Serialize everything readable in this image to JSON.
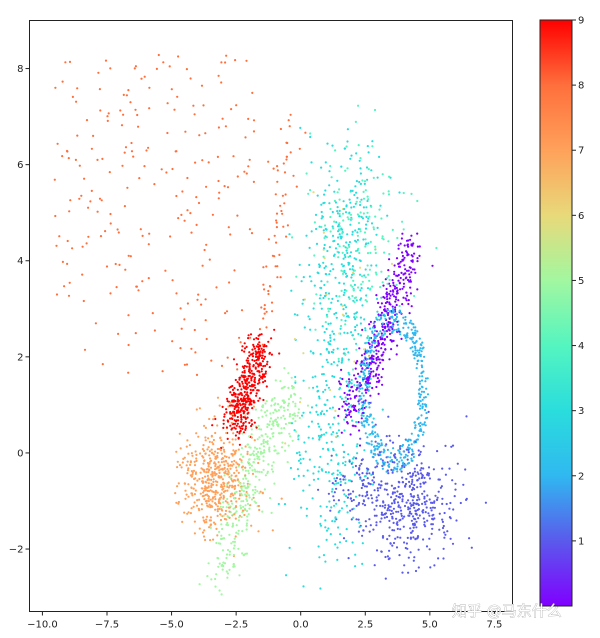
{
  "chart_data": {
    "type": "scatter",
    "title": "",
    "xlabel": "",
    "ylabel": "",
    "xlim": [
      -10.5,
      8.2
    ],
    "ylim": [
      -3.3,
      9.0
    ],
    "x_ticks": [
      -10.0,
      -7.5,
      -5.0,
      -2.5,
      0.0,
      2.5,
      5.0,
      7.5
    ],
    "x_tick_labels": [
      "−10.0",
      "−7.5",
      "−5.0",
      "−2.5",
      "0.0",
      "2.5",
      "5.0",
      "7.5"
    ],
    "y_ticks": [
      -2,
      0,
      2,
      4,
      6,
      8
    ],
    "y_tick_labels": [
      "−2",
      "0",
      "2",
      "4",
      "6",
      "8"
    ],
    "grid": false,
    "colorbar": {
      "colormap": "rainbow",
      "range": [
        0,
        9
      ],
      "ticks": [
        1,
        2,
        3,
        4,
        5,
        6,
        7,
        8,
        9
      ],
      "tick_labels": [
        "1",
        "2",
        "3",
        "4",
        "5",
        "6",
        "7",
        "8",
        "9"
      ]
    },
    "clusters": [
      {
        "label": 0,
        "color": "#8000ff",
        "count": 420,
        "spread": "curved band",
        "path": [
          [
            1.8,
            0.8
          ],
          [
            2.8,
            1.9
          ],
          [
            3.6,
            3.1
          ],
          [
            4.3,
            4.2
          ]
        ],
        "width": 0.28
      },
      {
        "label": 1,
        "color": "#5a5aec",
        "count": 520,
        "spread": "blob",
        "center": [
          4.2,
          -1.0
        ],
        "sd": [
          1.0,
          0.6
        ],
        "tail": [
          2.3,
          -0.6
        ]
      },
      {
        "label": 2,
        "color": "#30b8f0",
        "count": 450,
        "spread": "ring",
        "center": [
          3.6,
          1.3
        ],
        "radius": [
          1.2,
          1.5
        ]
      },
      {
        "label": 3,
        "color": "#2adddd",
        "count": 600,
        "spread": "vertical column",
        "path": [
          [
            1.2,
            -1.6
          ],
          [
            1.4,
            1.0
          ],
          [
            1.6,
            3.5
          ],
          [
            1.8,
            5.8
          ]
        ],
        "width": 0.75
      },
      {
        "label": 4,
        "color": "#54f5c0",
        "count": 180,
        "spread": "scattered",
        "center": [
          2.2,
          4.3
        ],
        "sd": [
          1.0,
          1.0
        ]
      },
      {
        "label": 5,
        "color": "#a2f7a0",
        "count": 380,
        "spread": "diagonal band",
        "path": [
          [
            -3.0,
            -2.4
          ],
          [
            -2.2,
            -0.8
          ],
          [
            -1.3,
            0.4
          ],
          [
            -0.3,
            1.1
          ]
        ],
        "width": 0.35
      },
      {
        "label": 6,
        "color": "#e8d97a",
        "count": 25,
        "spread": "sparse",
        "center": [
          1.2,
          3.0
        ],
        "sd": [
          1.0,
          2.0
        ]
      },
      {
        "label": 7,
        "color": "#ffa15a",
        "count": 480,
        "spread": "blob",
        "center": [
          -3.3,
          -0.6
        ],
        "sd": [
          0.65,
          0.55
        ]
      },
      {
        "label": 8,
        "color": "#ff6f3c",
        "count": 300,
        "spread": "wide scatter",
        "x_range": [
          -9.6,
          -1.8
        ],
        "y_range": [
          1.6,
          8.3
        ],
        "tail": [
          [
            -1.4,
            2.6
          ],
          [
            -0.4,
            6.8
          ]
        ]
      },
      {
        "label": 9,
        "color": "#ff0000",
        "count": 420,
        "spread": "diagonal band",
        "path": [
          [
            -2.6,
            0.6
          ],
          [
            -2.1,
            1.3
          ],
          [
            -1.5,
            2.3
          ]
        ],
        "width": 0.28
      }
    ]
  },
  "watermark": {
    "text": "知乎 @马东什么"
  }
}
